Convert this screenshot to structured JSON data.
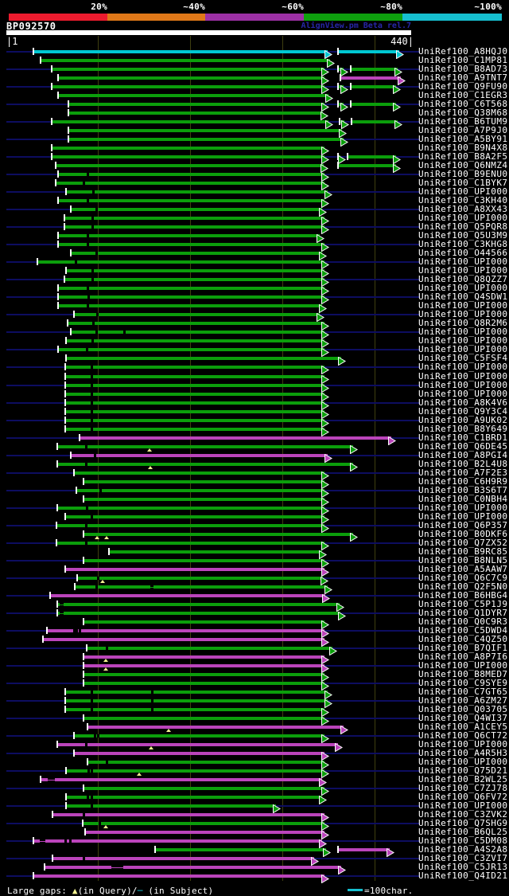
{
  "header": {
    "title": "BP092570",
    "watermark": "AlignView.pm Beta rel.7",
    "ruler_left": "|1",
    "ruler_right": "440|"
  },
  "legend": {
    "prefix": "Large gaps: ",
    "query_symbol": "▲",
    "query_text": "(in Query)/",
    "subject_symbol": "─",
    "subject_text": " (in Subject)",
    "scale_text": "=100char."
  },
  "chart_data": {
    "type": "alignment-overview",
    "query_id": "BP092570",
    "query_length": 440,
    "axis_ticks": [
      1,
      100,
      200,
      300,
      400,
      440
    ],
    "identity_scale": [
      {
        "label": "20%",
        "color": "#ed1b2e"
      },
      {
        "label": "~40%",
        "color": "#e07818"
      },
      {
        "label": "~60%",
        "color": "#9d30a5"
      },
      {
        "label": "~80%",
        "color": "#0ea00e"
      },
      {
        "label": "~100%",
        "color": "#16bfd0"
      }
    ],
    "color_key": {
      "g": "#0b9e0b",
      "m": "#bb44bb",
      "c": "#00c8d2"
    },
    "marker_colors": {
      "query_gap_triangle": "#f2f290",
      "subject_gap": "#000000"
    },
    "rows": [
      {
        "l": "UniRef100_A8HQJ0",
        "s": [
          [
            30,
            354,
            "c"
          ],
          [
            361,
            431,
            "c"
          ]
        ]
      },
      {
        "l": "UniRef100_C1MP81",
        "s": [
          [
            38,
            356,
            "g"
          ]
        ]
      },
      {
        "l": "UniRef100_B8AD73",
        "s": [
          [
            50,
            350,
            "g"
          ],
          [
            361,
            371,
            "g"
          ],
          [
            374,
            430,
            "g"
          ]
        ]
      },
      {
        "l": "UniRef100_A9TNT7",
        "s": [
          [
            57,
            350,
            "g"
          ],
          [
            363,
            433,
            "m"
          ]
        ]
      },
      {
        "l": "UniRef100_Q9FU90",
        "s": [
          [
            50,
            350,
            "g"
          ],
          [
            361,
            371,
            "g"
          ],
          [
            374,
            428,
            "g"
          ]
        ]
      },
      {
        "l": "UniRef100_C1EGR3",
        "s": [
          [
            57,
            355,
            "g"
          ]
        ]
      },
      {
        "l": "UniRef100_C6T568",
        "s": [
          [
            68,
            350,
            "g"
          ],
          [
            361,
            371,
            "g"
          ],
          [
            374,
            428,
            "g"
          ]
        ]
      },
      {
        "l": "UniRef100_Q38M68",
        "s": [
          [
            68,
            349,
            "g"
          ]
        ]
      },
      {
        "l": "UniRef100_B6TUM9",
        "s": [
          [
            50,
            355,
            "g"
          ],
          [
            362,
            372,
            "g"
          ],
          [
            375,
            430,
            "g"
          ]
        ]
      },
      {
        "l": "UniRef100_A7P9J0",
        "s": [
          [
            68,
            369,
            "g"
          ]
        ]
      },
      {
        "l": "UniRef100_A5BY91",
        "s": [
          [
            68,
            371,
            "g"
          ]
        ]
      },
      {
        "l": "UniRef100_B9N4X8",
        "s": [
          [
            50,
            350,
            "g"
          ]
        ]
      },
      {
        "l": "UniRef100_B8A2F5",
        "s": [
          [
            50,
            350,
            "g"
          ],
          [
            361,
            368,
            "g"
          ],
          [
            371,
            428,
            "g"
          ]
        ]
      },
      {
        "l": "UniRef100_Q6NMZ4",
        "s": [
          [
            54,
            349,
            "g"
          ],
          [
            361,
            428,
            "g"
          ]
        ]
      },
      {
        "l": "UniRef100_B9ENU0",
        "s": [
          [
            57,
            350,
            "g"
          ]
        ],
        "d": [
          89
        ]
      },
      {
        "l": "UniRef100_C1BYK7",
        "s": [
          [
            54,
            350,
            "g"
          ]
        ],
        "d": [
          85
        ]
      },
      {
        "l": "UniRef100_UPI000..",
        "s": [
          [
            66,
            354,
            "g"
          ]
        ],
        "d": [
          95
        ]
      },
      {
        "l": "UniRef100_C3KH40",
        "s": [
          [
            57,
            350,
            "g"
          ]
        ],
        "d": [
          89
        ]
      },
      {
        "l": "UniRef100_A8XX43",
        "s": [
          [
            71,
            348,
            "g"
          ]
        ],
        "d": [
          98
        ]
      },
      {
        "l": "UniRef100_UPI000..",
        "s": [
          [
            64,
            350,
            "g"
          ]
        ],
        "d": [
          94
        ]
      },
      {
        "l": "UniRef100_Q5PQR8",
        "s": [
          [
            64,
            350,
            "g"
          ]
        ],
        "d": [
          94
        ]
      },
      {
        "l": "UniRef100_Q5U3M9",
        "s": [
          [
            57,
            345,
            "g"
          ]
        ],
        "d": [
          89
        ]
      },
      {
        "l": "UniRef100_C3KHG8",
        "s": [
          [
            57,
            350,
            "g"
          ]
        ],
        "d": [
          89
        ]
      },
      {
        "l": "UniRef100_O44566",
        "s": [
          [
            71,
            348,
            "g"
          ]
        ],
        "d": [
          98
        ]
      },
      {
        "l": "UniRef100_UPI000..",
        "s": [
          [
            35,
            350,
            "g"
          ]
        ],
        "d": [
          76
        ]
      },
      {
        "l": "UniRef100_UPI000..",
        "s": [
          [
            66,
            350,
            "g"
          ]
        ],
        "d": [
          94
        ]
      },
      {
        "l": "UniRef100_Q8QZZ7",
        "s": [
          [
            64,
            350,
            "g"
          ]
        ],
        "d": [
          94
        ]
      },
      {
        "l": "UniRef100_UPI000..",
        "s": [
          [
            57,
            350,
            "g"
          ]
        ],
        "d": [
          89
        ]
      },
      {
        "l": "UniRef100_Q4SDW1",
        "s": [
          [
            57,
            350,
            "g"
          ]
        ],
        "d": [
          90
        ]
      },
      {
        "l": "UniRef100_UPI000..",
        "s": [
          [
            57,
            348,
            "g"
          ]
        ],
        "d": [
          89
        ]
      },
      {
        "l": "UniRef100_UPI000..",
        "s": [
          [
            74,
            345,
            "g"
          ]
        ],
        "d": [
          99
        ]
      },
      {
        "l": "UniRef100_Q8R2M6",
        "s": [
          [
            67,
            350,
            "g"
          ]
        ],
        "d": [
          95
        ]
      },
      {
        "l": "UniRef100_UPI000..",
        "s": [
          [
            71,
            350,
            "g"
          ]
        ],
        "d": [
          98,
          129
        ]
      },
      {
        "l": "UniRef100_UPI000..",
        "s": [
          [
            66,
            350,
            "g"
          ]
        ],
        "d": [
          94
        ]
      },
      {
        "l": "UniRef100_UPI000..",
        "s": [
          [
            57,
            350,
            "g"
          ]
        ],
        "d": [
          88
        ]
      },
      {
        "l": "UniRef100_C5FSF4",
        "s": [
          [
            66,
            368,
            "g"
          ]
        ]
      },
      {
        "l": "UniRef100_UPI000..",
        "s": [
          [
            65,
            350,
            "g"
          ]
        ],
        "d": [
          93
        ]
      },
      {
        "l": "UniRef100_UPI000..",
        "s": [
          [
            65,
            350,
            "g"
          ]
        ],
        "d": [
          93
        ]
      },
      {
        "l": "UniRef100_UPI000..",
        "s": [
          [
            65,
            350,
            "g"
          ]
        ],
        "d": [
          93
        ]
      },
      {
        "l": "UniRef100_UPI000..",
        "s": [
          [
            65,
            350,
            "g"
          ]
        ],
        "d": [
          93
        ]
      },
      {
        "l": "UniRef100_A8K4V6",
        "s": [
          [
            65,
            350,
            "g"
          ]
        ],
        "d": [
          93
        ]
      },
      {
        "l": "UniRef100_Q9Y3C4",
        "s": [
          [
            65,
            350,
            "g"
          ]
        ],
        "d": [
          93
        ]
      },
      {
        "l": "UniRef100_A9UK02",
        "s": [
          [
            65,
            350,
            "g"
          ]
        ],
        "d": [
          93
        ]
      },
      {
        "l": "UniRef100_B8Y649",
        "s": [
          [
            65,
            350,
            "g"
          ]
        ],
        "d": [
          93
        ]
      },
      {
        "l": "UniRef100_C1BRD1",
        "s": [
          [
            80,
            423,
            "m"
          ]
        ]
      },
      {
        "l": "UniRef100_Q6DE45",
        "s": [
          [
            56,
            381,
            "g"
          ]
        ],
        "d": [
          87
        ],
        "t": [
          156
        ]
      },
      {
        "l": "UniRef100_A8PGI4",
        "s": [
          [
            71,
            354,
            "m"
          ]
        ],
        "d": [
          97
        ]
      },
      {
        "l": "UniRef100_B2L4U8",
        "s": [
          [
            56,
            381,
            "g"
          ]
        ],
        "d": [
          87
        ],
        "t": [
          157
        ]
      },
      {
        "l": "UniRef100_A7F2E3",
        "s": [
          [
            74,
            350,
            "g"
          ]
        ]
      },
      {
        "l": "UniRef100_C6H9R9",
        "s": [
          [
            85,
            350,
            "g"
          ]
        ]
      },
      {
        "l": "UniRef100_B3S6T7",
        "s": [
          [
            77,
            350,
            "g"
          ]
        ],
        "d": [
          103
        ]
      },
      {
        "l": "UniRef100_C0NBH4",
        "s": [
          [
            85,
            350,
            "g"
          ]
        ]
      },
      {
        "l": "UniRef100_UPI000..",
        "s": [
          [
            56,
            350,
            "g"
          ]
        ],
        "d": [
          88
        ]
      },
      {
        "l": "UniRef100_UPI000..",
        "s": [
          [
            65,
            350,
            "g"
          ]
        ],
        "d": [
          93
        ]
      },
      {
        "l": "UniRef100_Q6P357",
        "s": [
          [
            55,
            350,
            "g"
          ]
        ],
        "d": [
          87
        ]
      },
      {
        "l": "UniRef100_B0DKF6",
        "s": [
          [
            85,
            381,
            "g"
          ]
        ],
        "t": [
          99,
          110
        ]
      },
      {
        "l": "UniRef100_Q7ZX52",
        "s": [
          [
            55,
            350,
            "g"
          ]
        ],
        "d": [
          87
        ]
      },
      {
        "l": "UniRef100_B9RC85",
        "s": [
          [
            112,
            348,
            "g"
          ]
        ]
      },
      {
        "l": "UniRef100_B8NLN5",
        "s": [
          [
            85,
            350,
            "g"
          ]
        ]
      },
      {
        "l": "UniRef100_A5AAW7",
        "s": [
          [
            65,
            350,
            "m"
          ]
        ]
      },
      {
        "l": "UniRef100_Q6C7C9",
        "s": [
          [
            78,
            349,
            "g"
          ]
        ],
        "d": [
          100
        ],
        "t": [
          105
        ]
      },
      {
        "l": "UniRef100_Q2F5N0",
        "s": [
          [
            75,
            354,
            "g"
          ]
        ],
        "d": [
          98
        ],
        "n": [
          [
            157,
            161
          ]
        ]
      },
      {
        "l": "UniRef100_B6HBG4",
        "s": [
          [
            48,
            351,
            "m"
          ]
        ]
      },
      {
        "l": "UniRef100_C5P1J9",
        "s": [
          [
            56,
            367,
            "g"
          ]
        ],
        "n": [
          [
            59,
            63
          ]
        ]
      },
      {
        "l": "UniRef100_Q1DYR7",
        "s": [
          [
            56,
            368,
            "g"
          ]
        ],
        "n": [
          [
            59,
            63
          ]
        ]
      },
      {
        "l": "UniRef100_Q0C9R3",
        "s": [
          [
            85,
            350,
            "g"
          ]
        ]
      },
      {
        "l": "UniRef100_C5DWD4",
        "s": [
          [
            45,
            350,
            "m"
          ]
        ],
        "d": [
          74,
          77,
          80
        ]
      },
      {
        "l": "UniRef100_C4QZ50",
        "s": [
          [
            41,
            350,
            "m"
          ]
        ]
      },
      {
        "l": "UniRef100_B7QIF1",
        "s": [
          [
            88,
            359,
            "g"
          ]
        ],
        "d": [
          110
        ]
      },
      {
        "l": "UniRef100_A8P7I6",
        "s": [
          [
            85,
            350,
            "m"
          ]
        ],
        "t": [
          109
        ]
      },
      {
        "l": "UniRef100_UPI000..",
        "s": [
          [
            85,
            350,
            "m"
          ]
        ],
        "t": [
          109
        ]
      },
      {
        "l": "UniRef100_B8MED7",
        "s": [
          [
            85,
            350,
            "g"
          ]
        ]
      },
      {
        "l": "UniRef100_C9SYE9",
        "s": [
          [
            85,
            350,
            "g"
          ]
        ]
      },
      {
        "l": "UniRef100_C7GT65",
        "s": [
          [
            65,
            354,
            "g"
          ]
        ],
        "d": [
          93,
          159
        ]
      },
      {
        "l": "UniRef100_A6ZM27",
        "s": [
          [
            65,
            354,
            "g"
          ]
        ],
        "d": [
          93,
          159
        ]
      },
      {
        "l": "UniRef100_Q03705",
        "s": [
          [
            65,
            350,
            "g"
          ]
        ],
        "d": [
          93,
          159
        ]
      },
      {
        "l": "UniRef100_Q4WI37",
        "s": [
          [
            85,
            350,
            "g"
          ]
        ]
      },
      {
        "l": "UniRef100_A1CEY5",
        "s": [
          [
            89,
            371,
            "m"
          ]
        ],
        "t": [
          177
        ]
      },
      {
        "l": "UniRef100_Q6CT72",
        "s": [
          [
            74,
            350,
            "g"
          ]
        ],
        "d": [
          97,
          100
        ]
      },
      {
        "l": "UniRef100_UPI000..",
        "s": [
          [
            56,
            365,
            "m"
          ]
        ],
        "d": [
          87
        ],
        "t": [
          158
        ]
      },
      {
        "l": "UniRef100_A4R5H3",
        "s": [
          [
            74,
            350,
            "m"
          ]
        ]
      },
      {
        "l": "UniRef100_UPI000..",
        "s": [
          [
            89,
            350,
            "g"
          ]
        ],
        "d": [
          110
        ]
      },
      {
        "l": "UniRef100_Q75D21",
        "s": [
          [
            66,
            350,
            "g"
          ]
        ],
        "d": [
          90,
          93
        ],
        "t": [
          145
        ]
      },
      {
        "l": "UniRef100_B2WL25",
        "s": [
          [
            38,
            348,
            "m"
          ]
        ],
        "n": [
          [
            46,
            54
          ]
        ]
      },
      {
        "l": "UniRef100_C7ZJ78",
        "s": [
          [
            85,
            350,
            "g"
          ]
        ]
      },
      {
        "l": "UniRef100_Q6FV72",
        "s": [
          [
            66,
            348,
            "g"
          ]
        ],
        "d": [
          89,
          93
        ]
      },
      {
        "l": "UniRef100_UPI000..",
        "s": [
          [
            66,
            298,
            "g"
          ]
        ],
        "d": [
          93
        ]
      },
      {
        "l": "UniRef100_C3ZVK2",
        "s": [
          [
            51,
            350,
            "m"
          ]
        ],
        "d": [
          85
        ]
      },
      {
        "l": "UniRef100_Q7SHG9",
        "s": [
          [
            84,
            350,
            "g"
          ]
        ],
        "d": [
          102
        ],
        "t": [
          109
        ]
      },
      {
        "l": "UniRef100_B6QL25",
        "s": [
          [
            86,
            350,
            "m"
          ]
        ]
      },
      {
        "l": "UniRef100_C5DM08",
        "s": [
          [
            30,
            348,
            "m"
          ]
        ],
        "d": [
          65,
          70
        ],
        "n": [
          [
            37,
            43
          ]
        ]
      },
      {
        "l": "UniRef100_A4S2A8",
        "s": [
          [
            162,
            352,
            "g"
          ],
          [
            361,
            421,
            "m"
          ]
        ]
      },
      {
        "l": "UniRef100_C3ZVI7",
        "s": [
          [
            51,
            339,
            "m"
          ]
        ],
        "d": [
          85
        ]
      },
      {
        "l": "UniRef100_C5JR13",
        "s": [
          [
            42,
            368,
            "m"
          ]
        ],
        "n": [
          [
            115,
            128
          ]
        ]
      },
      {
        "l": "UniRef100_Q4ID21",
        "s": [
          [
            30,
            350,
            "m"
          ]
        ]
      }
    ]
  }
}
